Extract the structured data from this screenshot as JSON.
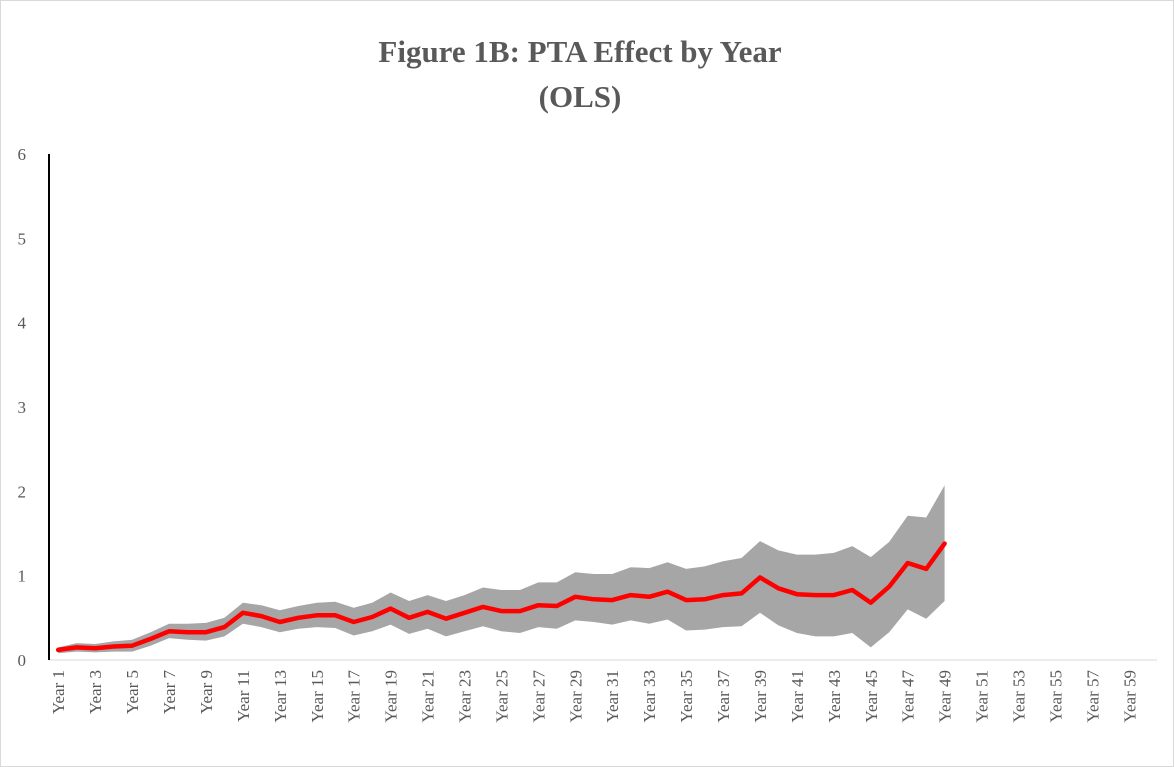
{
  "chart_data": {
    "type": "line",
    "title": [
      "Figure 1B: PTA Effect by Year",
      "(OLS)"
    ],
    "categories": [
      "Year 1",
      null,
      "Year 3",
      null,
      "Year 5",
      null,
      "Year 7",
      null,
      "Year 9",
      null,
      "Year 11",
      null,
      "Year 13",
      null,
      "Year 15",
      null,
      "Year 17",
      null,
      "Year 19",
      null,
      "Year 21",
      null,
      "Year 23",
      null,
      "Year 25",
      null,
      "Year 27",
      null,
      "Year 29",
      null,
      "Year 31",
      null,
      "Year 33",
      null,
      "Year 35",
      null,
      "Year 37",
      null,
      "Year 39",
      null,
      "Year 41",
      null,
      "Year 43",
      null,
      "Year 45",
      null,
      "Year 47",
      null,
      "Year 49",
      null,
      "Year 51",
      null,
      "Year 53",
      null,
      "Year 55",
      null,
      "Year 57",
      null,
      "Year 59",
      null
    ],
    "series": [
      {
        "color": "#ff0000",
        "values": [
          0.12,
          0.15,
          0.14,
          0.16,
          0.17,
          0.25,
          0.34,
          0.33,
          0.33,
          0.39,
          0.56,
          0.52,
          0.45,
          0.5,
          0.53,
          0.53,
          0.45,
          0.51,
          0.61,
          0.5,
          0.57,
          0.49,
          0.56,
          0.63,
          0.58,
          0.58,
          0.65,
          0.64,
          0.75,
          0.72,
          0.71,
          0.77,
          0.75,
          0.81,
          0.71,
          0.72,
          0.77,
          0.79,
          0.98,
          0.85,
          0.78,
          0.77,
          0.77,
          0.83,
          0.68,
          0.87,
          1.15,
          1.08,
          1.38,
          null,
          null,
          null,
          null,
          null,
          null,
          null,
          null,
          null,
          null,
          null
        ]
      }
    ],
    "band": {
      "color": "#a6a6a6",
      "upper": [
        0.15,
        0.2,
        0.19,
        0.22,
        0.24,
        0.33,
        0.43,
        0.43,
        0.44,
        0.5,
        0.68,
        0.65,
        0.59,
        0.64,
        0.68,
        0.69,
        0.62,
        0.68,
        0.8,
        0.7,
        0.77,
        0.7,
        0.77,
        0.86,
        0.83,
        0.83,
        0.92,
        0.92,
        1.04,
        1.02,
        1.02,
        1.1,
        1.09,
        1.16,
        1.08,
        1.11,
        1.17,
        1.21,
        1.41,
        1.3,
        1.25,
        1.25,
        1.27,
        1.35,
        1.22,
        1.4,
        1.71,
        1.69,
        2.07,
        null,
        null,
        null,
        null,
        null,
        null,
        null,
        null,
        null,
        null,
        null
      ],
      "lower": [
        0.08,
        0.1,
        0.09,
        0.1,
        0.1,
        0.17,
        0.26,
        0.24,
        0.23,
        0.28,
        0.43,
        0.39,
        0.33,
        0.37,
        0.39,
        0.38,
        0.29,
        0.34,
        0.42,
        0.31,
        0.37,
        0.28,
        0.34,
        0.4,
        0.34,
        0.32,
        0.39,
        0.37,
        0.47,
        0.45,
        0.42,
        0.47,
        0.43,
        0.48,
        0.35,
        0.36,
        0.39,
        0.4,
        0.56,
        0.41,
        0.32,
        0.28,
        0.28,
        0.32,
        0.15,
        0.33,
        0.6,
        0.49,
        0.7,
        null,
        null,
        null,
        null,
        null,
        null,
        null,
        null,
        null,
        null,
        null
      ]
    },
    "ylim": [
      0,
      6
    ],
    "yticks": [
      0,
      1,
      2,
      3,
      4,
      5,
      6
    ]
  }
}
